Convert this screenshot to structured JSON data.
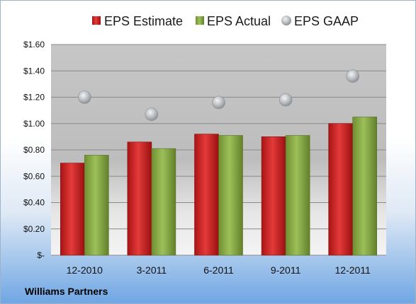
{
  "company": "Williams Partners",
  "chart_data": {
    "type": "bar",
    "categories": [
      "12-2010",
      "3-2011",
      "6-2011",
      "9-2011",
      "12-2011"
    ],
    "series": [
      {
        "name": "EPS Estimate",
        "kind": "bar",
        "color": "#d42a2a",
        "values": [
          0.7,
          0.86,
          0.92,
          0.9,
          1.0
        ]
      },
      {
        "name": "EPS Actual",
        "kind": "bar",
        "color": "#8cb04a",
        "values": [
          0.76,
          0.81,
          0.91,
          0.91,
          1.05
        ]
      },
      {
        "name": "EPS GAAP",
        "kind": "scatter",
        "color": "#b4b8bc",
        "values": [
          1.2,
          1.07,
          1.16,
          1.18,
          1.36
        ]
      }
    ],
    "yticks": [
      {
        "value": 0,
        "label": "$-"
      },
      {
        "value": 0.2,
        "label": "$0.20"
      },
      {
        "value": 0.4,
        "label": "$0.40"
      },
      {
        "value": 0.6,
        "label": "$0.60"
      },
      {
        "value": 0.8,
        "label": "$0.80"
      },
      {
        "value": 1.0,
        "label": "$1.00"
      },
      {
        "value": 1.2,
        "label": "$1.20"
      },
      {
        "value": 1.4,
        "label": "$1.40"
      },
      {
        "value": 1.6,
        "label": "$1.60"
      }
    ],
    "ylim": [
      0,
      1.6
    ],
    "grid": true,
    "legend_position": "top"
  }
}
